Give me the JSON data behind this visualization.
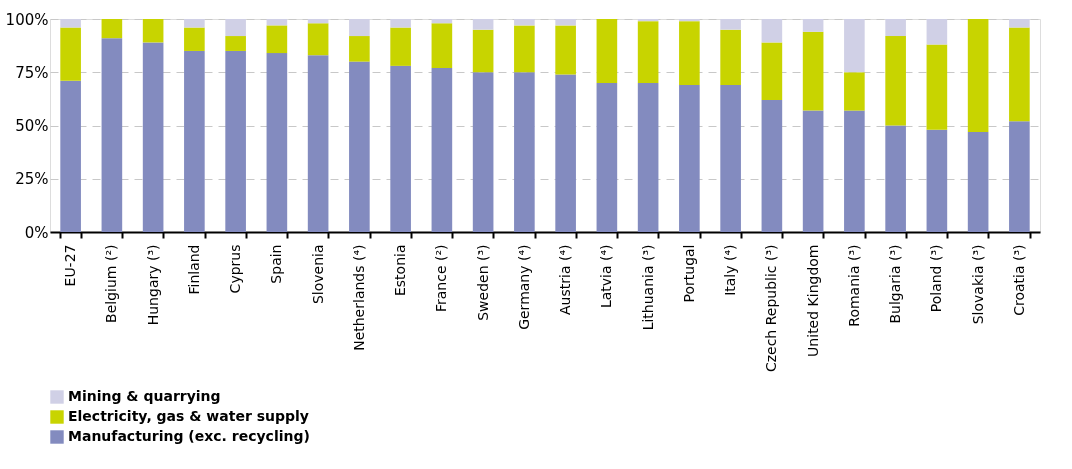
{
  "chart_data": {
    "type": "bar",
    "stacked": true,
    "categories": [
      "EU-27",
      "Belgium (²)",
      "Hungary (³)",
      "Finland",
      "Cyprus",
      "Spain",
      "Slovenia",
      "Netherlands (⁴)",
      "Estonia",
      "France (²)",
      "Sweden (³)",
      "Germany (⁴)",
      "Austria (⁴)",
      "Latvia (⁴)",
      "Lithuania (³)",
      "Portugal",
      "Italy (⁴)",
      "Czech Republic (³)",
      "United Kingdom",
      "Romania (³)",
      "Bulgaria (³)",
      "Poland (³)",
      "Slovakia (³)",
      "Croatia (³)"
    ],
    "series": [
      {
        "name": "Manufacturing (exc. recycling)",
        "color": "#838bbf",
        "values": [
          71,
          91,
          89,
          85,
          85,
          84,
          83,
          80,
          78,
          77,
          75,
          75,
          74,
          70,
          70,
          69,
          69,
          62,
          57,
          57,
          50,
          48,
          47,
          52
        ]
      },
      {
        "name": "Electricity, gas & water supply",
        "color": "#c8d400",
        "values": [
          25,
          9,
          11,
          11,
          7,
          13,
          15,
          12,
          18,
          21,
          20,
          22,
          23,
          30,
          29,
          30,
          26,
          27,
          37,
          18,
          42,
          40,
          53,
          44
        ]
      },
      {
        "name": "Mining & quarrying",
        "color": "#d0d0e6",
        "values": [
          4,
          0,
          0,
          4,
          8,
          3,
          2,
          8,
          4,
          2,
          5,
          3,
          3,
          0,
          1,
          1,
          5,
          11,
          6,
          25,
          8,
          12,
          0,
          4
        ]
      }
    ],
    "ylim": [
      0,
      100
    ],
    "yticks": [
      {
        "value": 0,
        "label": "0%"
      },
      {
        "value": 25,
        "label": "25%"
      },
      {
        "value": 50,
        "label": "50%"
      },
      {
        "value": 75,
        "label": "75%"
      },
      {
        "value": 100,
        "label": "100%"
      }
    ],
    "grid": "y",
    "legend": "bottom"
  }
}
